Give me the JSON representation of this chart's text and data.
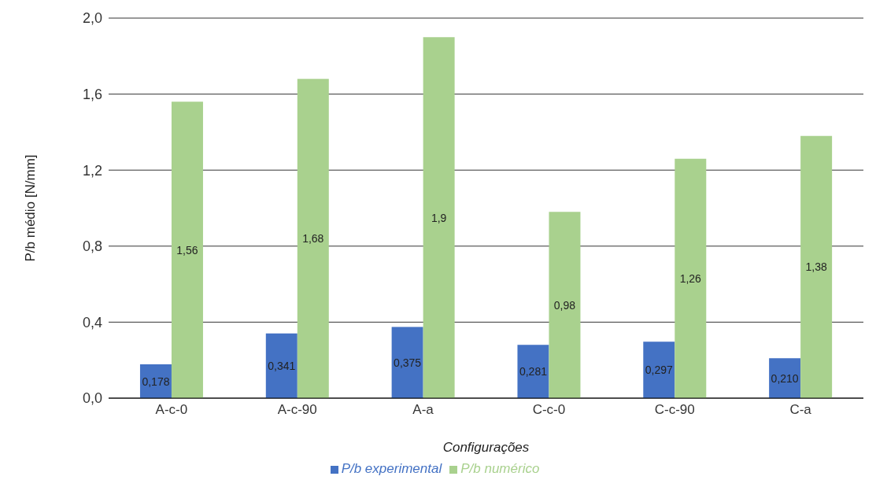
{
  "chart_data": {
    "type": "bar",
    "categories": [
      "A-c-0",
      "A-c-90",
      "A-a",
      "C-c-0",
      "C-c-90",
      "C-a"
    ],
    "series": [
      {
        "name": "P/b experimental",
        "color": "#4472c4",
        "values": [
          0.178,
          0.341,
          0.375,
          0.281,
          0.297,
          0.21
        ],
        "value_labels": [
          "0,178",
          "0,341",
          "0,375",
          "0,281",
          "0,297",
          "0,210"
        ]
      },
      {
        "name": "P/b numérico",
        "color": "#a9d18e",
        "values": [
          1.56,
          1.68,
          1.9,
          0.98,
          1.26,
          1.38
        ],
        "value_labels": [
          "1,56",
          "1,68",
          "1,9",
          "0,98",
          "1,26",
          "1,38"
        ]
      }
    ],
    "xlabel": "Configurações",
    "ylabel": "P/b médio [N/mm]",
    "ylim": [
      0,
      2
    ],
    "yticks": [
      {
        "value": 0,
        "label": "0,0"
      },
      {
        "value": 0.4,
        "label": "0,4"
      },
      {
        "value": 0.8,
        "label": "0,8"
      },
      {
        "value": 1.2,
        "label": "1,2"
      },
      {
        "value": 1.6,
        "label": "1,6"
      },
      {
        "value": 2,
        "label": "2,0"
      }
    ],
    "grid": "y",
    "legend": "bottom"
  }
}
